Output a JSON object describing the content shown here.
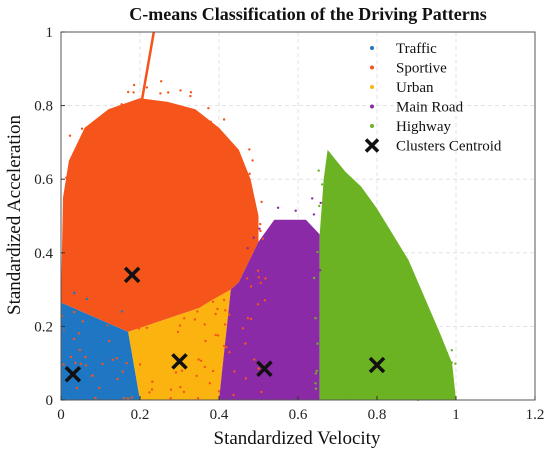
{
  "chart_data": {
    "type": "scatter",
    "title": "C-means Classification of the Driving Patterns",
    "xlabel": "Standardized Velocity",
    "ylabel": "Standardized Acceleration",
    "xlim": [
      0,
      1.2
    ],
    "ylim": [
      0,
      1
    ],
    "xticks": [
      "0",
      "0.2",
      "0.4",
      "0.6",
      "0.8",
      "1",
      "1.2"
    ],
    "yticks": [
      "0",
      "0.2",
      "0.4",
      "0.6",
      "0.8",
      "1"
    ],
    "grid": true,
    "legend_position": "top-right",
    "series": [
      {
        "name": "Traffic",
        "color": "#1f77c4"
      },
      {
        "name": "Sportive",
        "color": "#f5541a"
      },
      {
        "name": "Urban",
        "color": "#fbb30f"
      },
      {
        "name": "Main Road",
        "color": "#8b2aa6"
      },
      {
        "name": "Highway",
        "color": "#6cb324"
      }
    ],
    "centroids": {
      "name": "Clusters Centroid",
      "marker": "x",
      "color": "#111111",
      "points": [
        {
          "x": 0.03,
          "y": 0.07
        },
        {
          "x": 0.18,
          "y": 0.34
        },
        {
          "x": 0.3,
          "y": 0.105
        },
        {
          "x": 0.515,
          "y": 0.085
        },
        {
          "x": 0.8,
          "y": 0.095
        }
      ]
    },
    "regions": {
      "Traffic": [
        [
          0,
          0
        ],
        [
          0.2,
          0
        ],
        [
          0.17,
          0.185
        ],
        [
          0,
          0.265
        ]
      ],
      "Sportive": [
        [
          0,
          0.265
        ],
        [
          0.005,
          0.55
        ],
        [
          0.02,
          0.65
        ],
        [
          0.06,
          0.74
        ],
        [
          0.12,
          0.79
        ],
        [
          0.2,
          0.82
        ],
        [
          0.27,
          0.81
        ],
        [
          0.34,
          0.79
        ],
        [
          0.4,
          0.74
        ],
        [
          0.45,
          0.68
        ],
        [
          0.48,
          0.6
        ],
        [
          0.5,
          0.5
        ],
        [
          0.5,
          0.43
        ],
        [
          0.45,
          0.32
        ],
        [
          0.43,
          0.3
        ],
        [
          0.38,
          0.27
        ],
        [
          0.35,
          0.25
        ],
        [
          0.17,
          0.185
        ]
      ],
      "Urban": [
        [
          0.2,
          0
        ],
        [
          0.4,
          0
        ],
        [
          0.43,
          0.3
        ],
        [
          0.38,
          0.27
        ],
        [
          0.35,
          0.25
        ],
        [
          0.17,
          0.185
        ]
      ],
      "Main Road": [
        [
          0.4,
          0
        ],
        [
          0.655,
          0
        ],
        [
          0.655,
          0.45
        ],
        [
          0.62,
          0.49
        ],
        [
          0.54,
          0.49
        ],
        [
          0.5,
          0.43
        ],
        [
          0.45,
          0.32
        ],
        [
          0.43,
          0.3
        ]
      ],
      "Highway": [
        [
          0.655,
          0
        ],
        [
          1.0,
          0
        ],
        [
          0.99,
          0.1
        ],
        [
          0.96,
          0.18
        ],
        [
          0.92,
          0.28
        ],
        [
          0.88,
          0.38
        ],
        [
          0.84,
          0.45
        ],
        [
          0.8,
          0.52
        ],
        [
          0.76,
          0.58
        ],
        [
          0.72,
          0.62
        ],
        [
          0.69,
          0.66
        ],
        [
          0.675,
          0.68
        ],
        [
          0.665,
          0.6
        ],
        [
          0.655,
          0.45
        ]
      ]
    },
    "outlier_line": {
      "color": "#f5541a",
      "points": [
        [
          0.17,
          0.6
        ],
        [
          0.235,
          1.0
        ]
      ]
    }
  }
}
